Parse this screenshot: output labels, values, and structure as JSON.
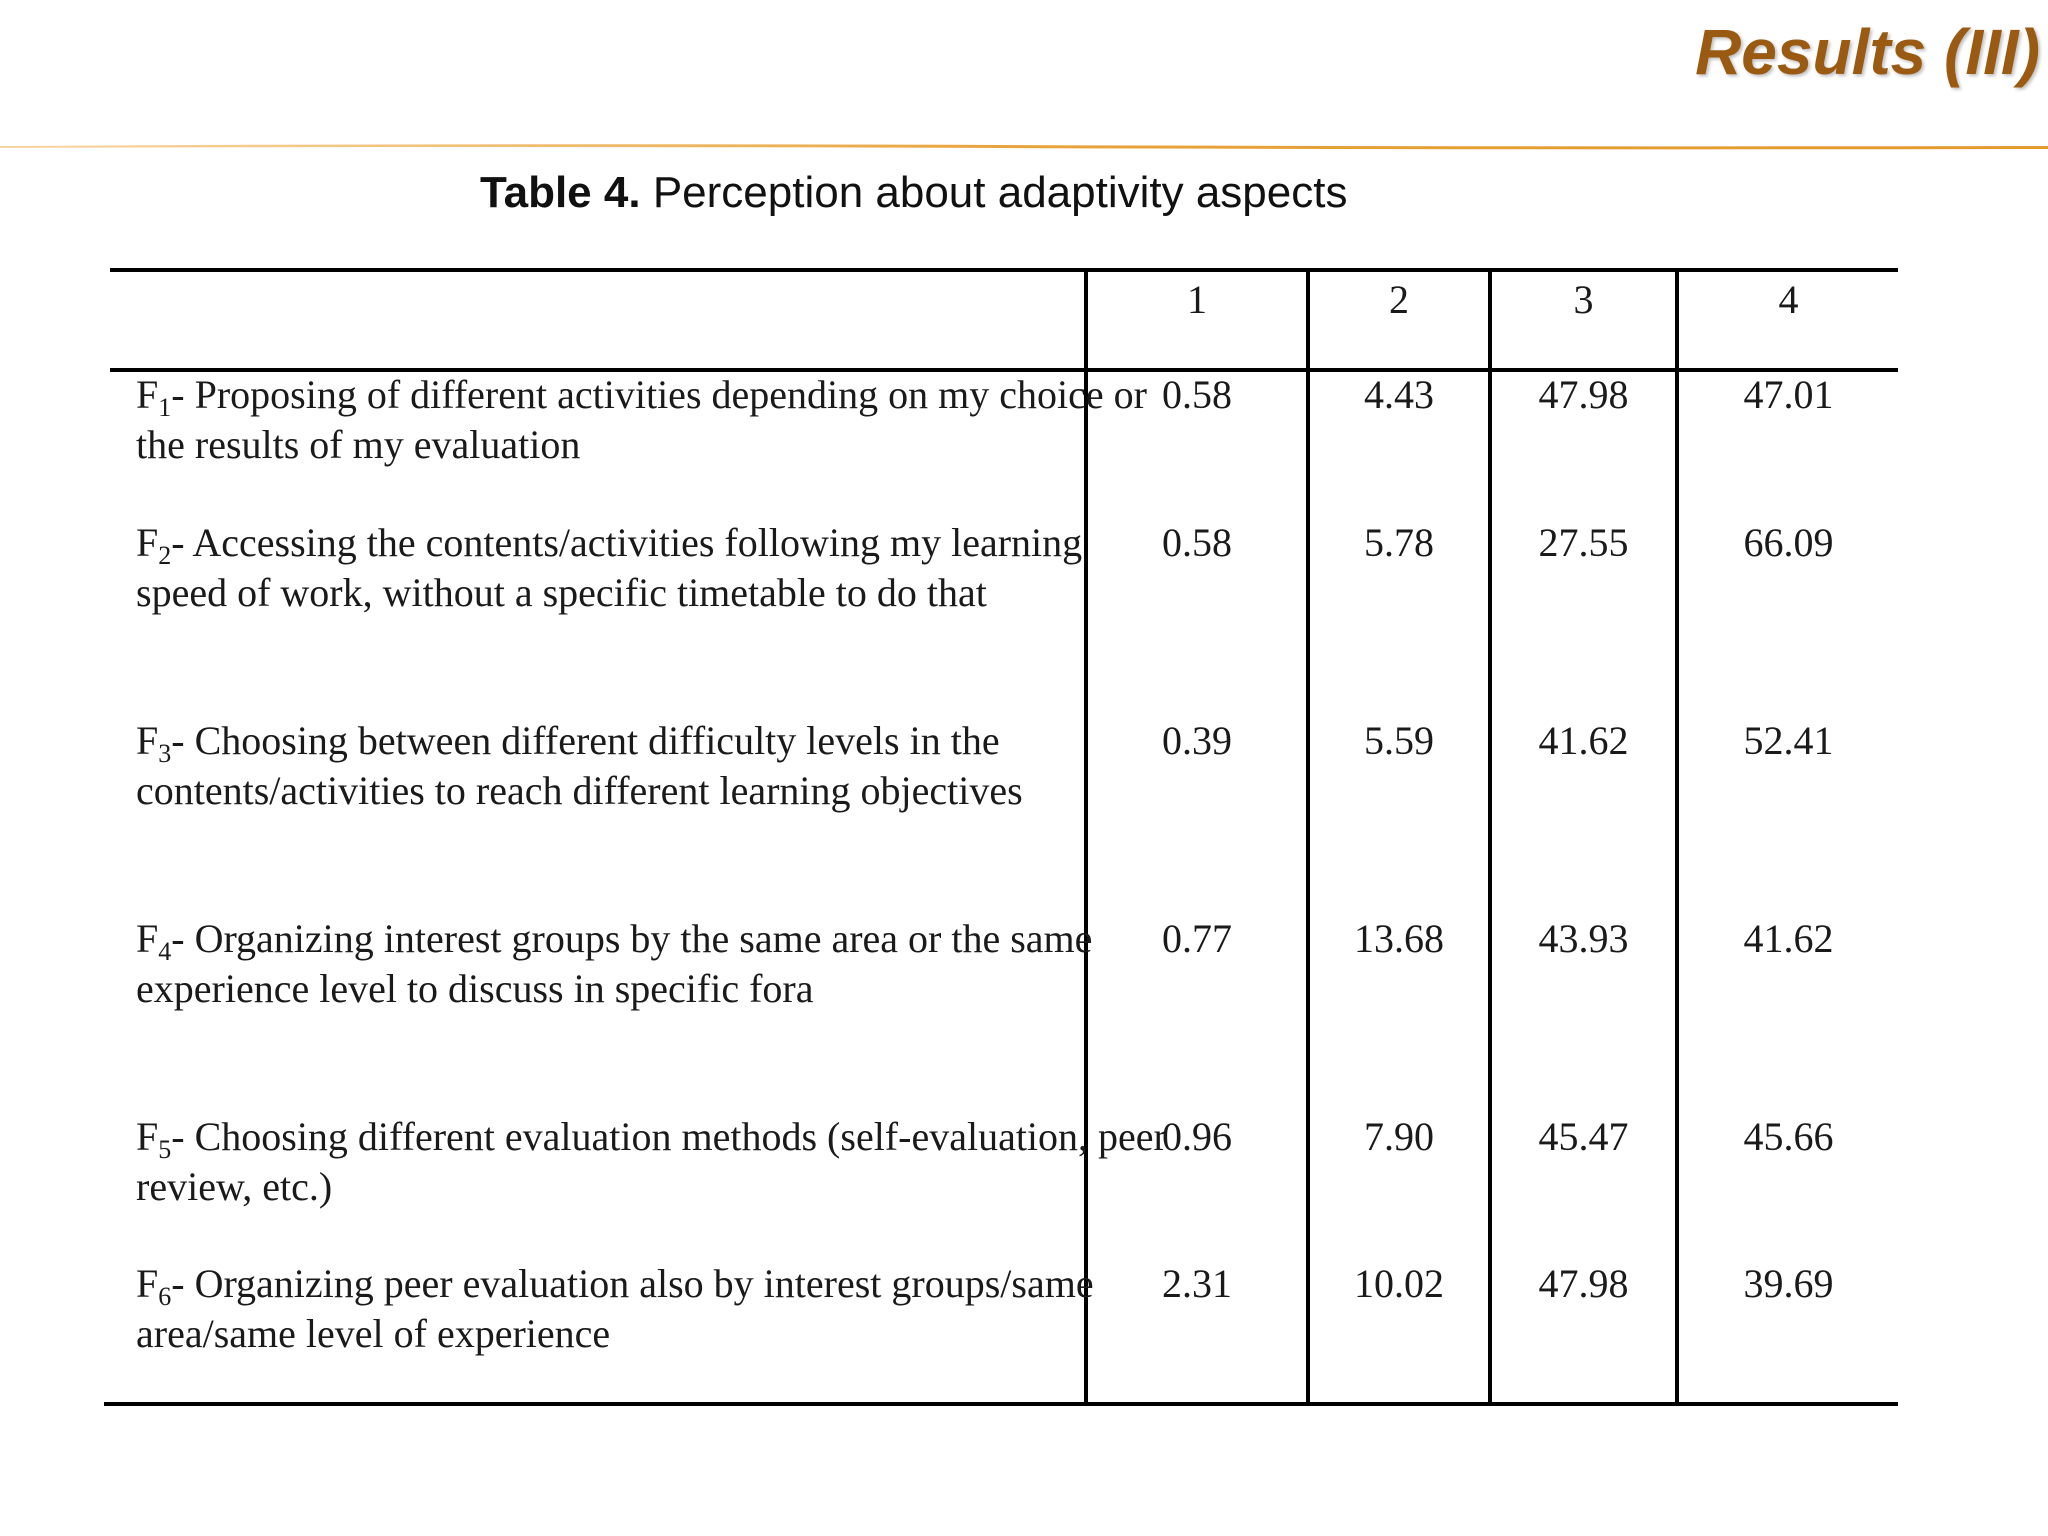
{
  "slide": {
    "title": "Results (III)"
  },
  "caption": {
    "label": "Table 4.",
    "text": "Perception about adaptivity aspects"
  },
  "table": {
    "columns": [
      "1",
      "2",
      "3",
      "4"
    ],
    "rows": [
      {
        "letter": "F",
        "sub": "1",
        "text": "- Proposing of different activities depending on my choice or the results of my evaluation",
        "values": [
          "0.58",
          "4.43",
          "47.98",
          "47.01"
        ]
      },
      {
        "letter": "F",
        "sub": "2",
        "text": "- Accessing the contents/activities following my learning speed of work, without a specific timetable to do that",
        "values": [
          "0.58",
          "5.78",
          "27.55",
          "66.09"
        ]
      },
      {
        "letter": "F",
        "sub": "3",
        "text": "- Choosing between different difficulty levels in the contents/activities to reach different learning objectives",
        "values": [
          "0.39",
          "5.59",
          "41.62",
          "52.41"
        ]
      },
      {
        "letter": "F",
        "sub": "4",
        "text": "- Organizing interest groups by the same area or the same experience level to discuss in specific fora",
        "values": [
          "0.77",
          "13.68",
          "43.93",
          "41.62"
        ]
      },
      {
        "letter": "F",
        "sub": "5",
        "text": "- Choosing different evaluation methods (self-evaluation, peer review, etc.)",
        "values": [
          "0.96",
          "7.90",
          "45.47",
          "45.66"
        ]
      },
      {
        "letter": "F",
        "sub": "6",
        "text": "- Organizing peer evaluation also by interest groups/same area/same level of experience",
        "values": [
          "2.31",
          "10.02",
          "47.98",
          "39.69"
        ]
      }
    ]
  },
  "colors": {
    "title": "#9a5a12",
    "divider": "#e8a33a"
  }
}
